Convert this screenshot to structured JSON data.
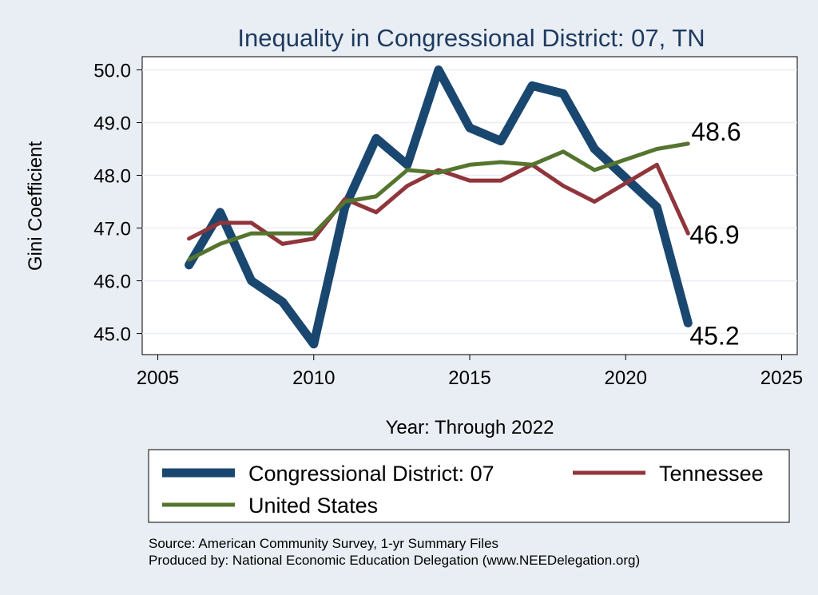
{
  "chart_data": {
    "type": "line",
    "title": "Inequality in Congressional District:  07, TN",
    "xlabel": "Year: Through 2022",
    "ylabel": "Gini Coefficient",
    "xlim": [
      2004.5,
      2025.5
    ],
    "ylim": [
      44.6,
      50.25
    ],
    "x_ticks": [
      2005,
      2010,
      2015,
      2020,
      2025
    ],
    "y_ticks": [
      45,
      46,
      47,
      48,
      49,
      50
    ],
    "x_tick_labels": [
      "2005",
      "2010",
      "2015",
      "2020",
      "2025"
    ],
    "y_tick_labels": [
      "45.0",
      "46.0",
      "47.0",
      "48.0",
      "49.0",
      "50.0"
    ],
    "x": [
      2006,
      2007,
      2008,
      2009,
      2010,
      2011,
      2012,
      2013,
      2014,
      2015,
      2016,
      2017,
      2018,
      2019,
      2020,
      2021,
      2022
    ],
    "series": [
      {
        "name": "Congressional District:  07",
        "color": "#1a476f",
        "values": [
          46.3,
          47.3,
          46.0,
          45.6,
          44.8,
          47.4,
          48.7,
          48.2,
          50.0,
          48.9,
          48.65,
          49.7,
          49.55,
          48.5,
          47.95,
          47.4,
          45.2
        ],
        "end_label": "45.2"
      },
      {
        "name": "Tennessee",
        "color": "#90353b",
        "values": [
          46.8,
          47.1,
          47.1,
          46.7,
          46.8,
          47.55,
          47.3,
          47.8,
          48.1,
          47.9,
          47.9,
          48.2,
          47.8,
          47.5,
          47.85,
          48.2,
          46.9
        ],
        "end_label": "46.9"
      },
      {
        "name": "United States",
        "color": "#55752f",
        "values": [
          46.4,
          46.7,
          46.9,
          46.9,
          46.9,
          47.5,
          47.6,
          48.1,
          48.05,
          48.2,
          48.25,
          48.2,
          48.45,
          48.1,
          48.3,
          48.5,
          48.6
        ],
        "end_label": "48.6"
      }
    ],
    "legend": {
      "position": "bottom",
      "entries": [
        "Congressional District:  07",
        "Tennessee",
        "United States"
      ]
    },
    "grid": true
  },
  "footnotes": {
    "source": "Source: American Community Survey, 1-yr Summary Files",
    "produced": "Produced by: National Economic Education Delegation (www.NEEDelegation.org)"
  }
}
